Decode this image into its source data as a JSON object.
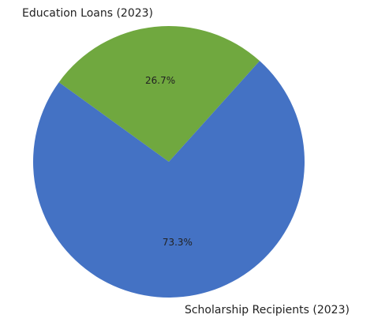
{
  "chart_data": {
    "type": "pie",
    "title": "",
    "slices": [
      {
        "label": "Education Loans (2023)",
        "percent_label": "26.7%",
        "value": 26.7,
        "color": "#70a83f"
      },
      {
        "label": "Scholarship Recipients (2023)",
        "percent_label": "73.3%",
        "value": 73.3,
        "color": "#4472c4"
      }
    ],
    "start_angle_deg": 48,
    "direction": "counterclockwise",
    "legend": "none"
  }
}
